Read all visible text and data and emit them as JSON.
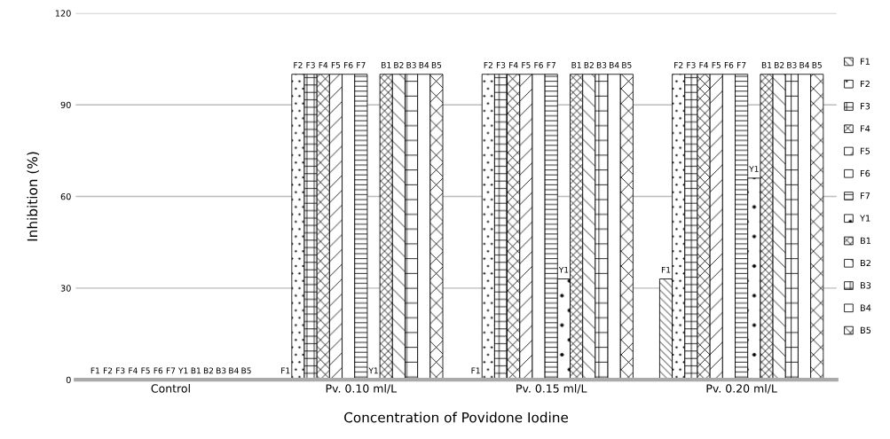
{
  "chart_data": {
    "type": "bar",
    "xlabel": "Concentration of Povidone Iodine",
    "ylabel": "Inhibition (%)",
    "categories": [
      "Control",
      "Pv. 0.10 ml/L",
      "Pv. 0.15 ml/L",
      "Pv. 0.20 ml/L"
    ],
    "ylim": [
      0,
      120
    ],
    "yticks": [
      0,
      30,
      60,
      90,
      120
    ],
    "grid": "y",
    "legend": "right",
    "series": [
      {
        "name": "F1",
        "color": "#000000",
        "values": [
          0,
          0,
          0,
          33
        ]
      },
      {
        "name": "F2",
        "color": "#000000",
        "values": [
          0,
          100,
          100,
          100
        ]
      },
      {
        "name": "F3",
        "color": "#000000",
        "values": [
          0,
          100,
          100,
          100
        ]
      },
      {
        "name": "F4",
        "color": "#000000",
        "values": [
          0,
          100,
          100,
          100
        ]
      },
      {
        "name": "F5",
        "color": "#000000",
        "values": [
          0,
          100,
          100,
          100
        ]
      },
      {
        "name": "F6",
        "color": "#000000",
        "values": [
          0,
          100,
          100,
          100
        ]
      },
      {
        "name": "F7",
        "color": "#000000",
        "values": [
          0,
          100,
          100,
          100
        ]
      },
      {
        "name": "Y1",
        "color": "#000000",
        "values": [
          0,
          0,
          33,
          66
        ]
      },
      {
        "name": "B1",
        "color": "#000000",
        "values": [
          0,
          100,
          100,
          100
        ]
      },
      {
        "name": "B2",
        "color": "#000000",
        "values": [
          0,
          100,
          100,
          100
        ]
      },
      {
        "name": "B3",
        "color": "#000000",
        "values": [
          0,
          100,
          100,
          100
        ]
      },
      {
        "name": "B4",
        "color": "#000000",
        "values": [
          0,
          100,
          100,
          100
        ]
      },
      {
        "name": "B5",
        "color": "#000000",
        "values": [
          0,
          100,
          100,
          100
        ]
      }
    ]
  }
}
